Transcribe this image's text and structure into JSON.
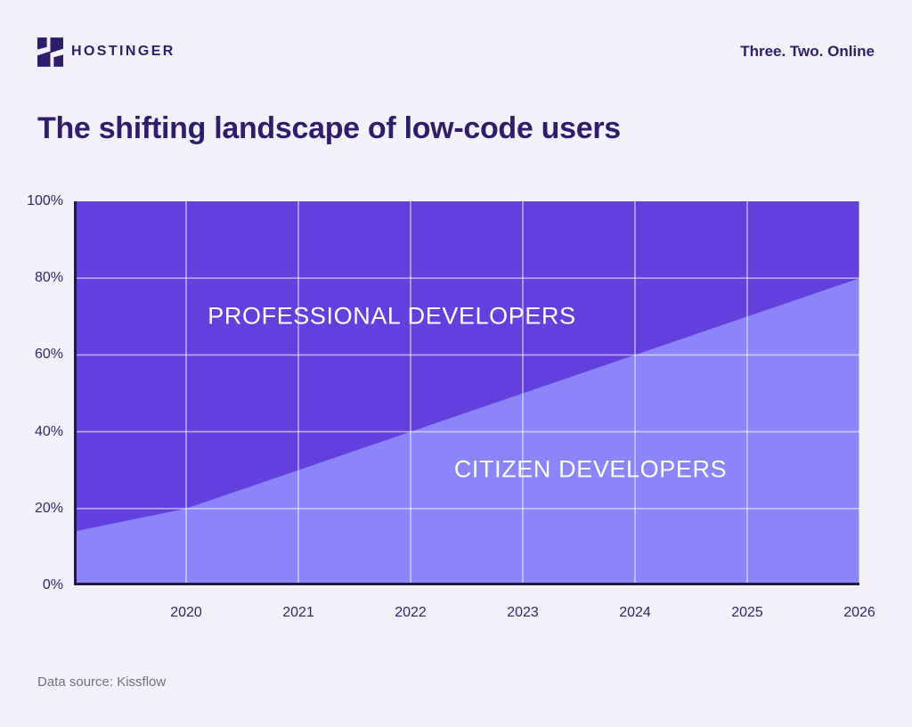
{
  "colors": {
    "background": "#F2F1FA",
    "brand_navy": "#2F1C6A",
    "professional_area": "#6340DE",
    "citizen_area": "#8C85FA",
    "axis_line": "#211A3E",
    "gridline": "rgba(255,255,255,0.55)",
    "tick_label": "#34246E",
    "series_label": "#FFFFFF",
    "footer_text": "#6E7081"
  },
  "header": {
    "logo_text": "HOSTINGER",
    "logo_icon": "hostinger-h-icon",
    "tagline": "Three. Two. Online"
  },
  "title": "The shifting landscape of low-code users",
  "footer": {
    "source": "Data source: Kissflow"
  },
  "chart_data": {
    "type": "area",
    "stacked": true,
    "title": "The shifting landscape of low-code users",
    "grid": true,
    "legend_position": "in-plot-labels",
    "unit": "%",
    "x_range": [
      2019,
      2026
    ],
    "x": [
      2019,
      2020,
      2021,
      2022,
      2023,
      2024,
      2025,
      2026
    ],
    "x_tick_years": [
      2020,
      2021,
      2022,
      2023,
      2024,
      2025,
      2026
    ],
    "x_tick_labels": [
      "2020",
      "2021",
      "2022",
      "2023",
      "2024",
      "2025",
      "2026"
    ],
    "ylim": [
      0,
      100
    ],
    "y_tick_percents": [
      0,
      20,
      40,
      60,
      80,
      100
    ],
    "y_tick_labels": [
      "0%",
      "20%",
      "40%",
      "60%",
      "80%",
      "100%"
    ],
    "y_gridline_percents": [
      20,
      40,
      60,
      80
    ],
    "series": [
      {
        "name": "CITIZEN DEVELOPERS",
        "color": "#8C85FA",
        "values": [
          14,
          20,
          30,
          40,
          50,
          60,
          70,
          80
        ]
      },
      {
        "name": "PROFESSIONAL DEVELOPERS",
        "color": "#6340DE",
        "values": [
          86,
          80,
          70,
          60,
          50,
          40,
          30,
          20
        ]
      }
    ]
  }
}
